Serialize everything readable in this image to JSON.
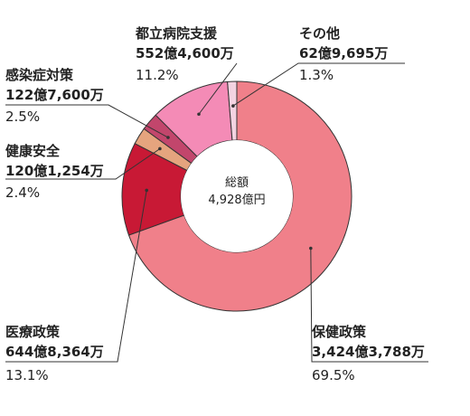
{
  "chart_data": {
    "type": "pie",
    "center_label": {
      "line1": "総額",
      "line2": "4,928億円"
    },
    "segments": [
      {
        "name": "保健政策",
        "amount": "3,424億3,788万",
        "percent": "69.5%",
        "value": 69.5,
        "color": "#f0808a"
      },
      {
        "name": "医療政策",
        "amount": "644億8,364万",
        "percent": "13.1%",
        "value": 13.1,
        "color": "#c81935"
      },
      {
        "name": "健康安全",
        "amount": "120億1,254万",
        "percent": "2.4%",
        "value": 2.4,
        "color": "#e5a47e"
      },
      {
        "name": "感染症対策",
        "amount": "122億7,600万",
        "percent": "2.5%",
        "value": 2.5,
        "color": "#c2466c"
      },
      {
        "name": "都立病院支援",
        "amount": "552億4,600万",
        "percent": "11.2%",
        "value": 11.2,
        "color": "#f48bb6"
      },
      {
        "name": "その他",
        "amount": "62億9,695万",
        "percent": "1.3%",
        "value": 1.3,
        "color": "#f3d3e1"
      }
    ]
  }
}
